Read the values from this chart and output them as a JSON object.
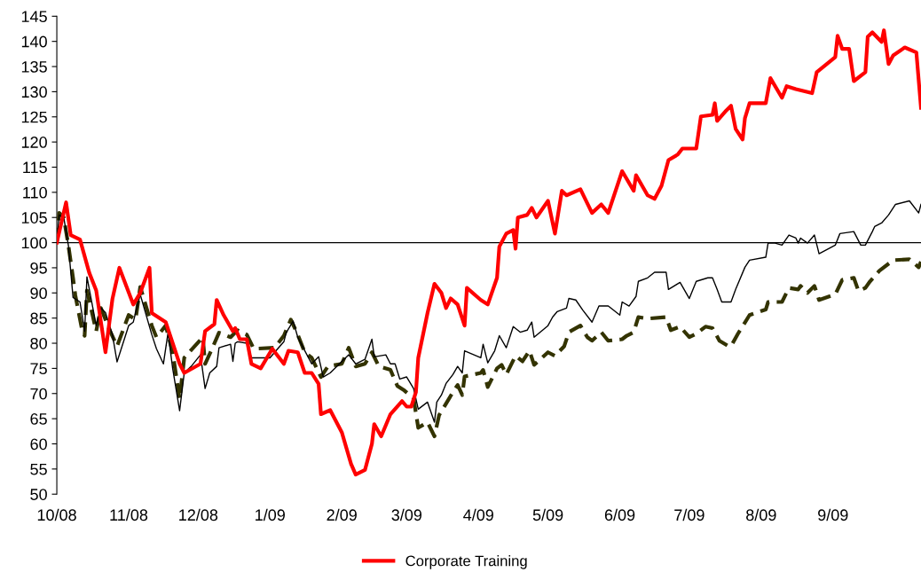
{
  "chart_data": {
    "type": "line",
    "xlim": [
      "2008-10-01",
      "2009-10-09"
    ],
    "xticks": [
      {
        "value": "2008-10-01",
        "label": "10/08"
      },
      {
        "value": "2008-11-01",
        "label": "11/08"
      },
      {
        "value": "2008-12-01",
        "label": "12/08"
      },
      {
        "value": "2009-01-01",
        "label": "1/09"
      },
      {
        "value": "2009-02-01",
        "label": "2/09"
      },
      {
        "value": "2009-03-01",
        "label": "3/09"
      },
      {
        "value": "2009-04-01",
        "label": "4/09"
      },
      {
        "value": "2009-05-01",
        "label": "5/09"
      },
      {
        "value": "2009-06-01",
        "label": "6/09"
      },
      {
        "value": "2009-07-01",
        "label": "7/09"
      },
      {
        "value": "2009-08-01",
        "label": "8/09"
      },
      {
        "value": "2009-09-01",
        "label": "9/09"
      }
    ],
    "ylim": [
      50,
      145
    ],
    "yticks": [
      50,
      55,
      60,
      65,
      70,
      75,
      80,
      85,
      90,
      95,
      100,
      105,
      110,
      115,
      120,
      125,
      130,
      135,
      140,
      145
    ],
    "grid": false,
    "legend": "bottom",
    "marker": "none",
    "ref_lines": [
      {
        "axis": "y",
        "value": 100,
        "color": "#000000",
        "line_style": "solid"
      }
    ],
    "series": [
      {
        "name": "Corporate Training",
        "color": "#ff0000",
        "line_style": "solid",
        "x": [
          "2008-10-01",
          "2008-10-05",
          "2008-10-07",
          "2008-10-11",
          "2008-10-15",
          "2008-10-18",
          "2008-10-22",
          "2008-10-25",
          "2008-10-28",
          "2008-11-03",
          "2008-11-06",
          "2008-11-10",
          "2008-11-11",
          "2008-11-17",
          "2008-11-23",
          "2008-11-25",
          "2008-12-02",
          "2008-12-04",
          "2008-12-08",
          "2008-12-09",
          "2008-12-12",
          "2008-12-16",
          "2008-12-17",
          "2008-12-19",
          "2008-12-22",
          "2008-12-24",
          "2008-12-28",
          "2009-01-02",
          "2009-01-07",
          "2009-01-09",
          "2009-01-13",
          "2009-01-16",
          "2009-01-19",
          "2009-01-22",
          "2009-01-23",
          "2009-01-27",
          "2009-02-01",
          "2009-02-05",
          "2009-02-07",
          "2009-02-11",
          "2009-02-14",
          "2009-02-15",
          "2009-02-18",
          "2009-02-22",
          "2009-02-27",
          "2009-03-01",
          "2009-03-03",
          "2009-03-05",
          "2009-03-06",
          "2009-03-10",
          "2009-03-13",
          "2009-03-16",
          "2009-03-18",
          "2009-03-20",
          "2009-03-23",
          "2009-03-26",
          "2009-03-27",
          "2009-04-02",
          "2009-04-05",
          "2009-04-09",
          "2009-04-10",
          "2009-04-13",
          "2009-04-16",
          "2009-04-17",
          "2009-04-18",
          "2009-04-22",
          "2009-04-24",
          "2009-04-26",
          "2009-05-01",
          "2009-05-04",
          "2009-05-07",
          "2009-05-09",
          "2009-05-15",
          "2009-05-20",
          "2009-05-24",
          "2009-05-27",
          "2009-06-02",
          "2009-06-07",
          "2009-06-08",
          "2009-06-13",
          "2009-06-16",
          "2009-06-19",
          "2009-06-22",
          "2009-06-26",
          "2009-06-28",
          "2009-07-04",
          "2009-07-06",
          "2009-07-11",
          "2009-07-12",
          "2009-07-13",
          "2009-07-17",
          "2009-07-19",
          "2009-07-21",
          "2009-07-24",
          "2009-07-25",
          "2009-07-27",
          "2009-08-03",
          "2009-08-05",
          "2009-08-10",
          "2009-08-12",
          "2009-08-16",
          "2009-08-23",
          "2009-08-25",
          "2009-09-02",
          "2009-09-03",
          "2009-09-05",
          "2009-09-08",
          "2009-09-10",
          "2009-09-15",
          "2009-09-16",
          "2009-09-18",
          "2009-09-22",
          "2009-09-23",
          "2009-09-25",
          "2009-09-27",
          "2009-10-02",
          "2009-10-07",
          "2009-10-09"
        ],
        "values": [
          100,
          108,
          101.5,
          100.6,
          94,
          90.5,
          78.2,
          88.8,
          95,
          87.7,
          90,
          95,
          86,
          84.2,
          75.9,
          74.1,
          75.9,
          82.4,
          83.8,
          88.6,
          85.6,
          82.4,
          83,
          80.8,
          80.8,
          75.9,
          75,
          78.9,
          75.9,
          78.5,
          78.2,
          74.1,
          74.1,
          71.9,
          65.9,
          66.7,
          62.3,
          56,
          53.9,
          54.8,
          60,
          63.9,
          61.5,
          65.9,
          68.5,
          67.4,
          67.4,
          70.3,
          77.1,
          86,
          91.8,
          90,
          87,
          88.9,
          87.7,
          83.5,
          91,
          88.6,
          87.7,
          93,
          99.2,
          101.8,
          102.5,
          98.8,
          105,
          105.5,
          106.9,
          105,
          108.3,
          101.8,
          110.3,
          109.4,
          110.6,
          105.9,
          107.6,
          105.9,
          114.2,
          110.3,
          113.4,
          109.4,
          108.7,
          111.3,
          116.4,
          117.5,
          118.7,
          118.7,
          125.1,
          125.4,
          127.7,
          124.2,
          126.3,
          127.2,
          122.6,
          120.5,
          124.7,
          127.7,
          127.7,
          132.7,
          128.8,
          131.1,
          130.5,
          129.7,
          133.9,
          136.9,
          141.1,
          138.5,
          138.5,
          132.1,
          133.9,
          140.9,
          141.8,
          139.9,
          142.2,
          135.5,
          137.2,
          138.8,
          137.8,
          126.8
        ]
      },
      {
        "color": "#000000",
        "line_style": "solid",
        "x": [
          "2008-10-01",
          "2008-10-02",
          "2008-10-04",
          "2008-10-06",
          "2008-10-08",
          "2008-10-11",
          "2008-10-13",
          "2008-10-14",
          "2008-10-18",
          "2008-10-20",
          "2008-10-22",
          "2008-10-25",
          "2008-10-27",
          "2008-11-01",
          "2008-11-03",
          "2008-11-06",
          "2008-11-11",
          "2008-11-13",
          "2008-11-16",
          "2008-11-18",
          "2008-11-20",
          "2008-11-23",
          "2008-11-25",
          "2008-11-28",
          "2008-12-02",
          "2008-12-04",
          "2008-12-06",
          "2008-12-09",
          "2008-12-10",
          "2008-12-15",
          "2008-12-16",
          "2008-12-17",
          "2008-12-18",
          "2008-12-22",
          "2008-12-24",
          "2009-01-01",
          "2009-01-03",
          "2009-01-07",
          "2009-01-08",
          "2009-01-11",
          "2009-01-13",
          "2009-01-15",
          "2009-01-19",
          "2009-01-22",
          "2009-01-24",
          "2009-01-27",
          "2009-02-04",
          "2009-02-07",
          "2009-02-11",
          "2009-02-14",
          "2009-02-15",
          "2009-02-20",
          "2009-02-22",
          "2009-02-24",
          "2009-02-26",
          "2009-03-01",
          "2009-03-04",
          "2009-03-06",
          "2009-03-10",
          "2009-03-13",
          "2009-03-14",
          "2009-03-16",
          "2009-03-18",
          "2009-03-21",
          "2009-03-23",
          "2009-03-25",
          "2009-03-26",
          "2009-04-02",
          "2009-04-03",
          "2009-04-05",
          "2009-04-08",
          "2009-04-10",
          "2009-04-13",
          "2009-04-16",
          "2009-04-19",
          "2009-04-22",
          "2009-04-24",
          "2009-04-25",
          "2009-05-01",
          "2009-05-03",
          "2009-05-05",
          "2009-05-09",
          "2009-05-10",
          "2009-05-13",
          "2009-05-16",
          "2009-05-20",
          "2009-05-23",
          "2009-05-27",
          "2009-06-01",
          "2009-06-02",
          "2009-06-05",
          "2009-06-08",
          "2009-06-09",
          "2009-06-13",
          "2009-06-16",
          "2009-06-21",
          "2009-06-22",
          "2009-06-27",
          "2009-07-01",
          "2009-07-04",
          "2009-07-09",
          "2009-07-11",
          "2009-07-13",
          "2009-07-15",
          "2009-07-19",
          "2009-07-21",
          "2009-07-25",
          "2009-07-27",
          "2009-08-03",
          "2009-08-04",
          "2009-08-07",
          "2009-08-10",
          "2009-08-13",
          "2009-08-16",
          "2009-08-17",
          "2009-08-18",
          "2009-08-21",
          "2009-08-24",
          "2009-08-26",
          "2009-09-02",
          "2009-09-04",
          "2009-09-10",
          "2009-09-13",
          "2009-09-15",
          "2009-09-18",
          "2009-09-19",
          "2009-09-22",
          "2009-09-25",
          "2009-09-28",
          "2009-10-04",
          "2009-10-08",
          "2009-10-09"
        ],
        "values": [
          100,
          105.5,
          105,
          99.4,
          89.1,
          88.2,
          82.4,
          93.2,
          83.5,
          87,
          86.1,
          81.7,
          76.3,
          83.5,
          84.2,
          89.7,
          81.7,
          78.9,
          75.9,
          82.1,
          75,
          66.6,
          74.1,
          75.4,
          77.7,
          71,
          74.1,
          75.4,
          79.1,
          79.8,
          76.4,
          80,
          80.3,
          80,
          77.1,
          77.1,
          78.2,
          80.3,
          82.1,
          84.4,
          81.2,
          79.4,
          75.9,
          77.3,
          73.3,
          74.1,
          77.7,
          75.9,
          76.8,
          80.8,
          77.3,
          77.7,
          75.9,
          75.9,
          72.9,
          73.3,
          71,
          66.9,
          68.3,
          64.3,
          68.3,
          69.7,
          72,
          73.8,
          75.4,
          74.1,
          78.5,
          77.1,
          79.8,
          76.1,
          78.5,
          81.5,
          79.1,
          83.3,
          82.2,
          82.6,
          84.2,
          81.2,
          83.5,
          85.2,
          86.3,
          87,
          88.9,
          88.6,
          86.6,
          84.2,
          87.4,
          87.4,
          85.6,
          88.2,
          87.4,
          89.3,
          92.3,
          93,
          94.1,
          94.1,
          90.7,
          92.1,
          88.9,
          92.3,
          93,
          93,
          90.7,
          88.2,
          88.2,
          90.7,
          95.1,
          96.5,
          97.1,
          99.9,
          99.9,
          99.5,
          101.5,
          100.9,
          99.9,
          100.9,
          99.9,
          101.5,
          97.8,
          99.5,
          101.8,
          102.2,
          99.5,
          99.5,
          102.2,
          103.2,
          103.9,
          105.5,
          107.6,
          108.3,
          105.9,
          107.6
        ]
      },
      {
        "color": "#333300",
        "line_style": "dashed",
        "x": [
          "2008-10-01",
          "2008-10-02",
          "2008-10-04",
          "2008-10-06",
          "2008-10-08",
          "2008-10-09",
          "2008-10-12",
          "2008-10-13",
          "2008-10-14",
          "2008-10-18",
          "2008-10-20",
          "2008-10-24",
          "2008-10-27",
          "2008-11-01",
          "2008-11-04",
          "2008-11-06",
          "2008-11-11",
          "2008-11-13",
          "2008-11-17",
          "2008-11-20",
          "2008-11-23",
          "2008-11-25",
          "2008-12-03",
          "2008-12-04",
          "2008-12-07",
          "2008-12-10",
          "2008-12-15",
          "2008-12-18",
          "2008-12-22",
          "2008-12-25",
          "2009-01-03",
          "2009-01-07",
          "2009-01-10",
          "2009-01-13",
          "2009-01-16",
          "2009-01-19",
          "2009-01-23",
          "2009-01-26",
          "2009-02-01",
          "2009-02-04",
          "2009-02-07",
          "2009-02-11",
          "2009-02-14",
          "2009-02-17",
          "2009-02-22",
          "2009-02-25",
          "2009-02-28",
          "2009-03-04",
          "2009-03-06",
          "2009-03-10",
          "2009-03-13",
          "2009-03-15",
          "2009-03-18",
          "2009-03-21",
          "2009-03-23",
          "2009-03-25",
          "2009-03-26",
          "2009-04-02",
          "2009-04-03",
          "2009-04-05",
          "2009-04-09",
          "2009-04-11",
          "2009-04-13",
          "2009-04-17",
          "2009-04-20",
          "2009-04-23",
          "2009-04-25",
          "2009-05-01",
          "2009-05-04",
          "2009-05-08",
          "2009-05-10",
          "2009-05-15",
          "2009-05-18",
          "2009-05-20",
          "2009-05-24",
          "2009-05-27",
          "2009-06-02",
          "2009-06-04",
          "2009-06-07",
          "2009-06-09",
          "2009-06-13",
          "2009-06-21",
          "2009-06-23",
          "2009-06-27",
          "2009-07-01",
          "2009-07-04",
          "2009-07-08",
          "2009-07-11",
          "2009-07-14",
          "2009-07-18",
          "2009-07-19",
          "2009-07-22",
          "2009-07-27",
          "2009-08-03",
          "2009-08-04",
          "2009-08-10",
          "2009-08-13",
          "2009-08-17",
          "2009-08-18",
          "2009-08-21",
          "2009-08-24",
          "2009-08-26",
          "2009-09-02",
          "2009-09-05",
          "2009-09-10",
          "2009-09-12",
          "2009-09-15",
          "2009-09-17",
          "2009-09-21",
          "2009-09-27",
          "2009-10-04",
          "2009-10-08",
          "2009-10-09"
        ],
        "values": [
          100,
          105.9,
          105,
          99.4,
          93,
          89.5,
          82.4,
          81.5,
          90.5,
          82.4,
          87,
          82.4,
          79.4,
          85.6,
          84.7,
          91.2,
          83.5,
          81.2,
          83.5,
          78.2,
          68.9,
          77.1,
          81.2,
          75.9,
          78.9,
          82.1,
          81.2,
          82.6,
          81.7,
          78.9,
          79.1,
          81.5,
          84.7,
          81.7,
          78.2,
          77.1,
          73.3,
          75.4,
          75.9,
          79.1,
          75.4,
          75.9,
          78.2,
          75.4,
          74.7,
          71.5,
          70.6,
          69,
          63.2,
          64.3,
          61.5,
          65.7,
          68,
          70.3,
          71.7,
          69.7,
          73.4,
          74.1,
          74.7,
          71.3,
          75,
          75.7,
          73.8,
          77.5,
          76.4,
          78.5,
          75.7,
          78.2,
          77.5,
          79.4,
          82.2,
          83.5,
          81.2,
          80.5,
          82.2,
          80.5,
          80.8,
          81.5,
          82.2,
          85.2,
          84.9,
          85.2,
          82.6,
          83.3,
          81.2,
          81.9,
          83.3,
          83,
          80.5,
          79.4,
          79.4,
          81.9,
          85.6,
          86.7,
          88.2,
          88.2,
          91,
          90.7,
          91.4,
          90,
          91.4,
          88.6,
          89.7,
          92.6,
          93,
          90.4,
          91,
          92.3,
          94.4,
          96.5,
          96.7,
          95.1,
          96.2
        ]
      }
    ]
  }
}
